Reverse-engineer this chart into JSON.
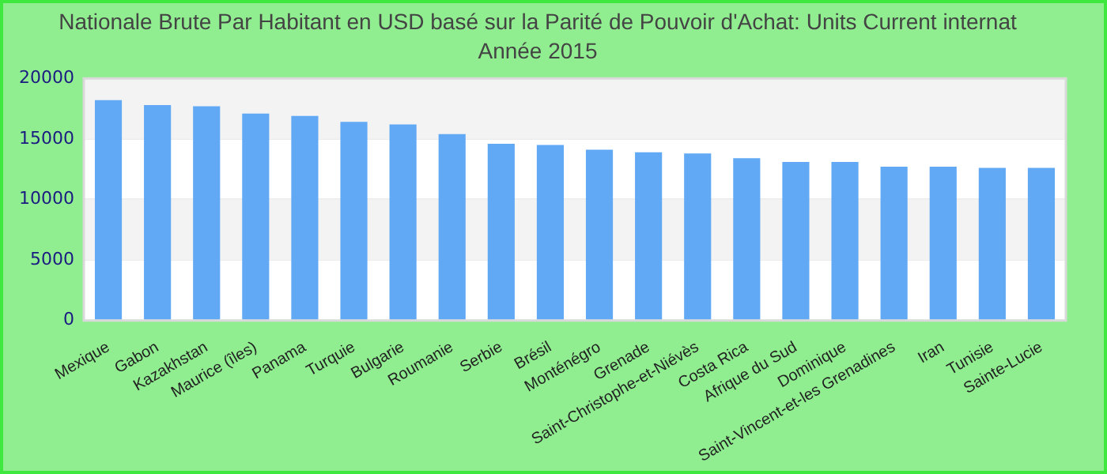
{
  "chart_data": {
    "type": "bar",
    "title": "Nationale Brute Par Habitant en USD basé sur la Parité de Pouvoir d'Achat: Units Current internat",
    "subtitle": "Année 2015",
    "categories": [
      "Mexique",
      "Gabon",
      "Kazakhstan",
      "Maurice (îles)",
      "Panama",
      "Turquie",
      "Bulgarie",
      "Roumanie",
      "Serbie",
      "Brésil",
      "Monténégro",
      "Grenade",
      "Saint-Christophe-et-Niévès",
      "Costa Rica",
      "Afrique du Sud",
      "Dominique",
      "Saint-Vincent-et-les Grenadines",
      "Iran",
      "Tunisie",
      "Sainte-Lucie"
    ],
    "values": [
      18200,
      17800,
      17700,
      17100,
      16900,
      16400,
      16200,
      15400,
      14600,
      14500,
      14100,
      13900,
      13800,
      13400,
      13100,
      13100,
      12700,
      12700,
      12600,
      12600
    ],
    "color": "#62a9f5",
    "ylim": [
      0,
      20000
    ],
    "yticks": [
      0,
      5000,
      10000,
      15000,
      20000
    ],
    "grid": true,
    "legend": false
  }
}
